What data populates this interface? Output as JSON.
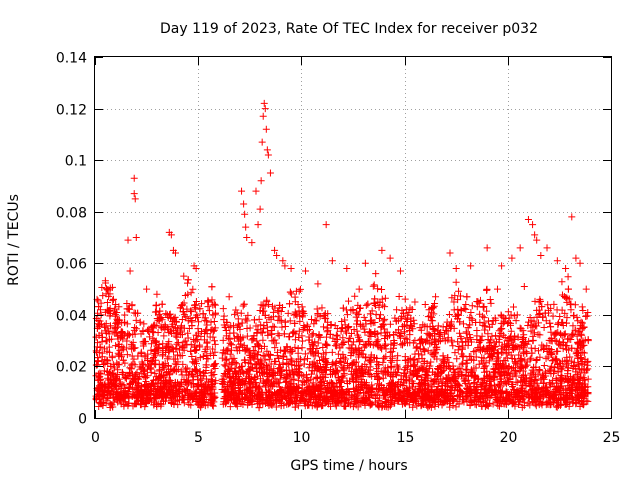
{
  "chart_data": {
    "type": "scatter",
    "title": "Day 119 of 2023, Rate Of TEC Index for receiver p032",
    "xlabel": "GPS time / hours",
    "ylabel": "ROTI / TECUs",
    "xlim": [
      0,
      25
    ],
    "ylim": [
      0,
      0.14
    ],
    "x_ticks": [
      0,
      5,
      10,
      15,
      20,
      25
    ],
    "x_tick_labels": [
      "0",
      "5",
      "10",
      "15",
      "20",
      "25"
    ],
    "y_ticks": [
      0,
      0.02,
      0.04,
      0.06,
      0.08,
      0.1,
      0.12,
      0.14
    ],
    "y_tick_labels": [
      "0",
      "0.02",
      "0.04",
      "0.06",
      "0.08",
      "0.1",
      "0.12",
      "0.14"
    ],
    "grid": true,
    "marker": "plus",
    "color": "#ff0000",
    "note": "Dense ROTI scatter (~thousands of samples) mostly between 0.005 and 0.04 TECU/min, gap near 5.9-6.1 h; representative points listed",
    "series": [
      {
        "name": "ROTI",
        "x": [
          1.9,
          1.9,
          1.95,
          2.0,
          1.6,
          1.7,
          3.6,
          3.7,
          3.8,
          3.9,
          4.8,
          4.9,
          7.1,
          7.2,
          7.25,
          7.3,
          7.35,
          7.6,
          7.8,
          7.9,
          8.0,
          8.05,
          8.1,
          8.15,
          8.2,
          8.25,
          8.3,
          8.35,
          8.4,
          8.5,
          8.7,
          8.8,
          9.1,
          9.2,
          9.5,
          10.2,
          11.2,
          11.5,
          12.2,
          13.1,
          13.6,
          13.9,
          14.3,
          14.8,
          16.5,
          17.2,
          17.5,
          18.2,
          19.0,
          19.7,
          20.2,
          20.6,
          21.0,
          21.2,
          21.3,
          21.4,
          21.6,
          21.9,
          22.4,
          22.8,
          23.1,
          23.3,
          23.5,
          23.8,
          0.1,
          0.3,
          0.6,
          1.0,
          2.5,
          3.0,
          4.3,
          5.5,
          6.5,
          10.8,
          12.8,
          15.5,
          16.0,
          19.5,
          20.8,
          23.9
        ],
        "y": [
          0.093,
          0.087,
          0.085,
          0.07,
          0.069,
          0.057,
          0.072,
          0.071,
          0.065,
          0.064,
          0.059,
          0.058,
          0.088,
          0.083,
          0.079,
          0.074,
          0.07,
          0.068,
          0.088,
          0.075,
          0.081,
          0.092,
          0.107,
          0.117,
          0.122,
          0.12,
          0.112,
          0.104,
          0.102,
          0.095,
          0.065,
          0.063,
          0.061,
          0.059,
          0.058,
          0.057,
          0.075,
          0.061,
          0.058,
          0.06,
          0.056,
          0.065,
          0.062,
          0.057,
          0.047,
          0.064,
          0.058,
          0.059,
          0.066,
          0.059,
          0.062,
          0.066,
          0.077,
          0.075,
          0.071,
          0.069,
          0.063,
          0.066,
          0.061,
          0.058,
          0.078,
          0.062,
          0.06,
          0.05,
          0.046,
          0.04,
          0.042,
          0.044,
          0.05,
          0.048,
          0.055,
          0.045,
          0.047,
          0.052,
          0.05,
          0.045,
          0.044,
          0.05,
          0.051,
          0.03
        ]
      }
    ]
  }
}
